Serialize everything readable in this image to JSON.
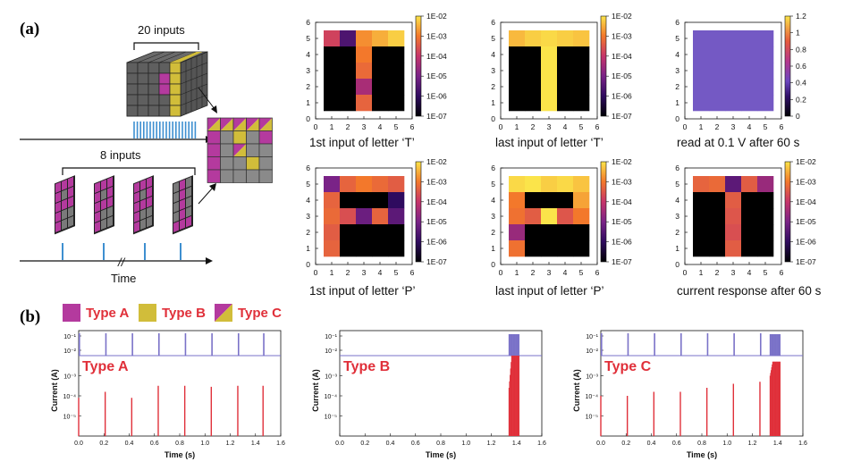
{
  "panel_labels": {
    "a": "(a)",
    "b": "(b)"
  },
  "schematic": {
    "inputs_20": "20 inputs",
    "inputs_8": "8 inputs",
    "time_label": "Time"
  },
  "legend": [
    {
      "label": "Type A",
      "color": "#b43a9e"
    },
    {
      "label": "Type B",
      "color": "#d1bd3a"
    },
    {
      "label": "Type C",
      "color": "split"
    }
  ],
  "colors": {
    "type_a": "#b43a9e",
    "type_b": "#d1bd3a",
    "type_c_label": "#e0303a",
    "grid_gray": "#8a8a8a",
    "pulse_blue": "#3e8fd0",
    "trace_blue": "#7a72c8",
    "trace_red": "#e0303a"
  },
  "chart_data": [
    {
      "type": "heatmap",
      "title": "1st input of letter ‘T’",
      "xticks": [
        "0",
        "1",
        "2",
        "3",
        "4",
        "5",
        "6"
      ],
      "yticks": [
        "0",
        "1",
        "2",
        "3",
        "4",
        "5",
        "6"
      ],
      "colorbar": [
        "1E-02",
        "1E-03",
        "1E-04",
        "1E-05",
        "1E-06",
        "1E-07"
      ],
      "colorbar_type": "log",
      "xlim": [
        0,
        6
      ],
      "ylim": [
        0,
        6
      ],
      "rows_top_to_bottom": [
        [
          -3.8,
          -5.6,
          -2.8,
          -2.5,
          -2.2
        ],
        [
          -7,
          -7,
          -3.0,
          -7,
          -7
        ],
        [
          -7,
          -7,
          -3.2,
          -7,
          -7
        ],
        [
          -7,
          -7,
          -4.4,
          -7,
          -7
        ],
        [
          -7,
          -7,
          -3.3,
          -7,
          -7
        ]
      ]
    },
    {
      "type": "heatmap",
      "title": "last input of letter ‘T’",
      "xticks": [
        "0",
        "1",
        "2",
        "3",
        "4",
        "5",
        "6"
      ],
      "yticks": [
        "0",
        "1",
        "2",
        "3",
        "4",
        "5",
        "6"
      ],
      "colorbar": [
        "1E-02",
        "1E-03",
        "1E-04",
        "1E-05",
        "1E-06",
        "1E-07"
      ],
      "colorbar_type": "log",
      "xlim": [
        0,
        6
      ],
      "ylim": [
        0,
        6
      ],
      "rows_top_to_bottom": [
        [
          -2.4,
          -2.2,
          -2.1,
          -2.2,
          -2.3
        ],
        [
          -7,
          -7,
          -2.0,
          -7,
          -7
        ],
        [
          -7,
          -7,
          -2.0,
          -7,
          -7
        ],
        [
          -7,
          -7,
          -2.0,
          -7,
          -7
        ],
        [
          -7,
          -7,
          -2.0,
          -7,
          -7
        ]
      ]
    },
    {
      "type": "heatmap",
      "title": "read at 0.1 V after 60 s",
      "xticks": [
        "0",
        "1",
        "2",
        "3",
        "4",
        "5",
        "6"
      ],
      "yticks": [
        "0",
        "1",
        "2",
        "3",
        "4",
        "5",
        "6"
      ],
      "colorbar": [
        "1.2",
        "1",
        "0.8",
        "0.6",
        "0.4",
        "0.2",
        "0"
      ],
      "colorbar_type": "linear",
      "xlim": [
        0,
        6
      ],
      "ylim": [
        0,
        6
      ],
      "rows_top_to_bottom": [
        [
          0.4,
          0.4,
          0.4,
          0.4,
          0.4
        ],
        [
          0.4,
          0.4,
          0.4,
          0.4,
          0.4
        ],
        [
          0.4,
          0.4,
          0.4,
          0.4,
          0.4
        ],
        [
          0.4,
          0.4,
          0.4,
          0.4,
          0.4
        ],
        [
          0.4,
          0.4,
          0.4,
          0.4,
          0.4
        ]
      ]
    },
    {
      "type": "heatmap",
      "title": "1st input of letter ‘P’",
      "xticks": [
        "0",
        "1",
        "2",
        "3",
        "4",
        "5",
        "6"
      ],
      "yticks": [
        "0",
        "1",
        "2",
        "3",
        "4",
        "5",
        "6"
      ],
      "colorbar": [
        "1E-02",
        "1E-03",
        "1E-04",
        "1E-05",
        "1E-06",
        "1E-07"
      ],
      "colorbar_type": "log",
      "xlim": [
        0,
        6
      ],
      "ylim": [
        0,
        6
      ],
      "rows_top_to_bottom": [
        [
          -5.0,
          -3.3,
          -3.0,
          -3.2,
          -3.4
        ],
        [
          -3.3,
          -7,
          -7,
          -7,
          -6.0
        ],
        [
          -3.2,
          -3.6,
          -5.2,
          -3.3,
          -5.4
        ],
        [
          -3.4,
          -7,
          -7,
          -7,
          -7
        ],
        [
          -3.3,
          -7,
          -7,
          -7,
          -7
        ]
      ]
    },
    {
      "type": "heatmap",
      "title": "last input of letter ‘P’",
      "xticks": [
        "0",
        "1",
        "2",
        "3",
        "4",
        "5",
        "6"
      ],
      "yticks": [
        "0",
        "1",
        "2",
        "3",
        "4",
        "5",
        "6"
      ],
      "colorbar": [
        "1E-02",
        "1E-03",
        "1E-04",
        "1E-05",
        "1E-06",
        "1E-07"
      ],
      "colorbar_type": "log",
      "xlim": [
        0,
        6
      ],
      "ylim": [
        0,
        6
      ],
      "rows_top_to_bottom": [
        [
          -2.1,
          -2.0,
          -2.2,
          -2.1,
          -2.3
        ],
        [
          -3.0,
          -7,
          -7,
          -7,
          -2.6
        ],
        [
          -3.1,
          -3.4,
          -2.0,
          -3.5,
          -3.0
        ],
        [
          -4.6,
          -7,
          -7,
          -7,
          -7
        ],
        [
          -3.1,
          -7,
          -7,
          -7,
          -7
        ]
      ]
    },
    {
      "type": "heatmap",
      "title": "current response after 60 s",
      "xticks": [
        "0",
        "1",
        "2",
        "3",
        "4",
        "5",
        "6"
      ],
      "yticks": [
        "0",
        "1",
        "2",
        "3",
        "4",
        "5",
        "6"
      ],
      "colorbar": [
        "1E-02",
        "1E-03",
        "1E-04",
        "1E-05",
        "1E-06",
        "1E-07"
      ],
      "colorbar_type": "log",
      "xlim": [
        0,
        6
      ],
      "ylim": [
        0,
        6
      ],
      "rows_top_to_bottom": [
        [
          -3.3,
          -3.2,
          -5.4,
          -3.4,
          -4.6
        ],
        [
          -7,
          -7,
          -3.4,
          -7,
          -7
        ],
        [
          -7,
          -7,
          -3.5,
          -7,
          -7
        ],
        [
          -7,
          -7,
          -3.6,
          -7,
          -7
        ],
        [
          -7,
          -7,
          -3.4,
          -7,
          -7
        ]
      ]
    },
    {
      "type": "line",
      "label": "Type A",
      "xlabel": "Time (s)",
      "ylabel": "Current (A)",
      "xticks": [
        "0.0",
        "0.2",
        "0.4",
        "0.6",
        "0.8",
        "1.0",
        "1.2",
        "1.4",
        "1.6"
      ],
      "xlim": [
        0,
        1.6
      ],
      "top_yticks": [
        "10⁻¹",
        "10⁻²"
      ],
      "bottom_yticks": [
        "10⁻³",
        "10⁻⁴",
        "10⁻⁵"
      ],
      "voltage_pulse_times": [
        0.0,
        0.21,
        0.42,
        0.63,
        0.84,
        1.05,
        1.26,
        1.46
      ],
      "current_spikes": [
        {
          "t": 0.0,
          "log_i": -4.1
        },
        {
          "t": 0.21,
          "log_i": -3.8
        },
        {
          "t": 0.42,
          "log_i": -4.1
        },
        {
          "t": 0.63,
          "log_i": -3.5
        },
        {
          "t": 0.84,
          "log_i": -3.5
        },
        {
          "t": 1.05,
          "log_i": -3.55
        },
        {
          "t": 1.26,
          "log_i": -3.5
        },
        {
          "t": 1.46,
          "log_i": -3.5
        }
      ]
    },
    {
      "type": "line",
      "label": "Type B",
      "xlabel": "Time (s)",
      "ylabel": "Current (A)",
      "xticks": [
        "0.0",
        "0.2",
        "0.4",
        "0.6",
        "0.8",
        "1.0",
        "1.2",
        "1.4",
        "1.6"
      ],
      "xlim": [
        0,
        1.6
      ],
      "top_yticks": [
        "10⁻¹",
        "10⁻²"
      ],
      "bottom_yticks": [
        "10⁻³",
        "10⁻⁴",
        "10⁻⁵"
      ],
      "burst": {
        "start": 1.34,
        "end": 1.42,
        "count": 20,
        "log_i_start": -3.6,
        "log_i_end": -2.0
      }
    },
    {
      "type": "line",
      "label": "Type C",
      "xlabel": "Time (s)",
      "ylabel": "Current (A)",
      "xticks": [
        "0.0",
        "0.2",
        "0.4",
        "0.6",
        "0.8",
        "1.0",
        "1.2",
        "1.4",
        "1.6"
      ],
      "xlim": [
        0,
        1.6
      ],
      "top_yticks": [
        "10⁻¹",
        "10⁻²"
      ],
      "bottom_yticks": [
        "10⁻³",
        "10⁻⁴",
        "10⁻⁵"
      ],
      "voltage_pulse_times": [
        0.0,
        0.21,
        0.42,
        0.63,
        0.84,
        1.05,
        1.26
      ],
      "current_spikes": [
        {
          "t": 0.0,
          "log_i": -4.0
        },
        {
          "t": 0.21,
          "log_i": -4.0
        },
        {
          "t": 0.42,
          "log_i": -3.8
        },
        {
          "t": 0.63,
          "log_i": -3.8
        },
        {
          "t": 0.84,
          "log_i": -3.6
        },
        {
          "t": 1.05,
          "log_i": -3.4
        },
        {
          "t": 1.26,
          "log_i": -3.3
        }
      ],
      "burst": {
        "start": 1.34,
        "end": 1.42,
        "count": 20,
        "log_i_start": -3.0,
        "log_i_end": -2.3
      }
    }
  ]
}
